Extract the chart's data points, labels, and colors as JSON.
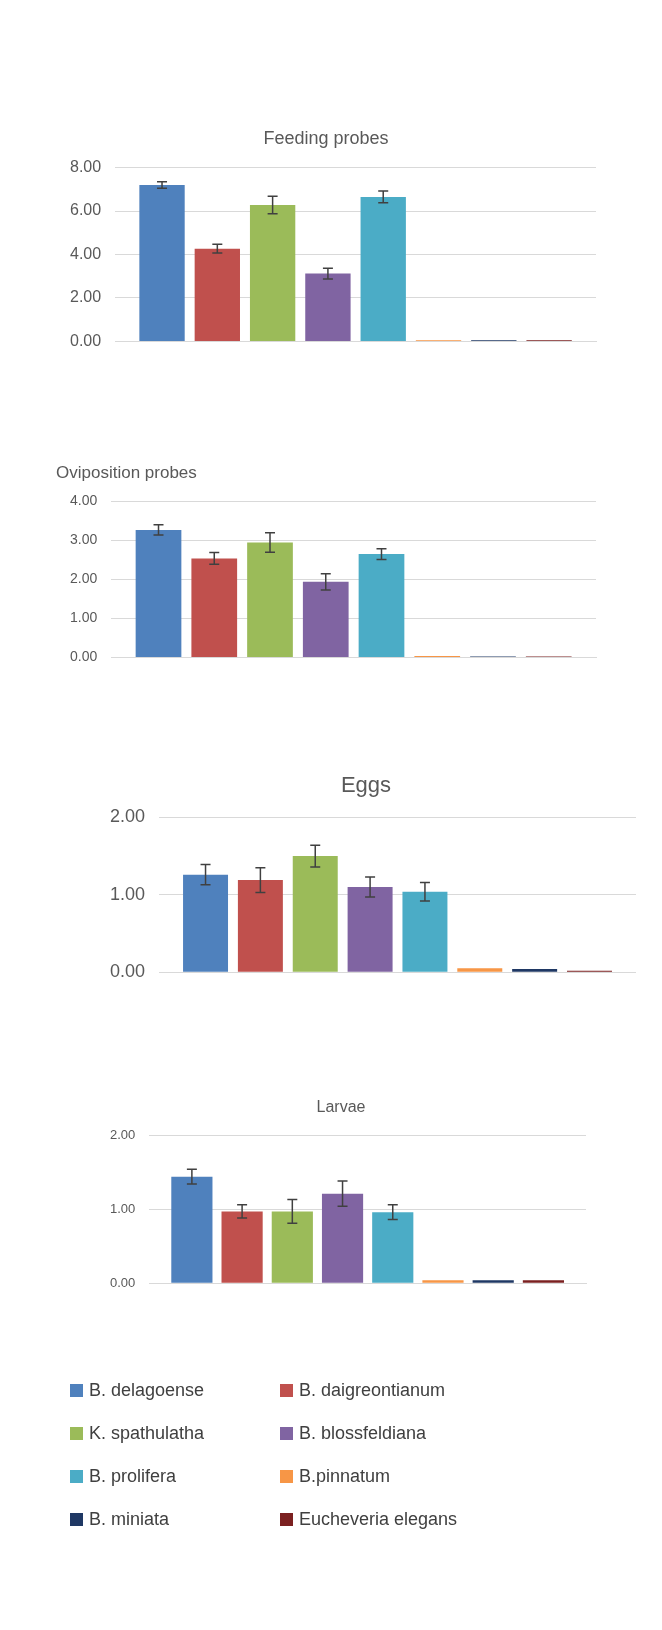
{
  "chart_data": [
    {
      "type": "bar",
      "title": "Feeding probes",
      "categories": [
        null
      ],
      "series": [
        {
          "color": "#4f81bd",
          "values": [
            7.2
          ],
          "errors": [
            0.15
          ]
        },
        {
          "color": "#c0504d",
          "values": [
            4.27
          ],
          "errors": [
            0.2
          ]
        },
        {
          "color": "#9bbb59",
          "values": [
            6.28
          ],
          "errors": [
            0.4
          ]
        },
        {
          "color": "#8064a2",
          "values": [
            3.12
          ],
          "errors": [
            0.25
          ]
        },
        {
          "color": "#4bacc6",
          "values": [
            6.65
          ],
          "errors": [
            0.27
          ]
        },
        {
          "color": "#f79646",
          "values": [
            0.05
          ]
        },
        {
          "color": "#1f3864",
          "values": [
            0.05
          ]
        },
        {
          "color": "#7b2020",
          "values": [
            0.05
          ]
        }
      ],
      "ylim": [
        0,
        8
      ],
      "yticks": [
        {
          "value": 0,
          "label": "0.00"
        },
        {
          "value": 2,
          "label": "2.00"
        },
        {
          "value": 4,
          "label": "4.00"
        },
        {
          "value": 6,
          "label": "6.00"
        },
        {
          "value": 8,
          "label": "8.00"
        }
      ],
      "grid": "y",
      "tick_labels": "y"
    },
    {
      "type": "bar",
      "title": "Oviposition probes",
      "categories": [
        null
      ],
      "series": [
        {
          "color": "#4f81bd",
          "values": [
            3.27
          ],
          "errors": [
            0.13
          ]
        },
        {
          "color": "#c0504d",
          "values": [
            2.54
          ],
          "errors": [
            0.15
          ]
        },
        {
          "color": "#9bbb59",
          "values": [
            2.95
          ],
          "errors": [
            0.25
          ]
        },
        {
          "color": "#8064a2",
          "values": [
            1.94
          ],
          "errors": [
            0.21
          ]
        },
        {
          "color": "#4bacc6",
          "values": [
            2.65
          ],
          "errors": [
            0.14
          ]
        },
        {
          "color": "#f79646",
          "values": [
            0.04
          ]
        },
        {
          "color": "#1f3864",
          "values": [
            0.03
          ]
        },
        {
          "color": "#7b2020",
          "values": [
            0.03
          ]
        }
      ],
      "ylim": [
        0,
        4
      ],
      "yticks": [
        {
          "value": 0,
          "label": "0.00"
        },
        {
          "value": 1,
          "label": "1.00"
        },
        {
          "value": 2,
          "label": "2.00"
        },
        {
          "value": 3,
          "label": "3.00"
        },
        {
          "value": 4,
          "label": "4.00"
        }
      ],
      "grid": "y",
      "tick_labels": "y"
    },
    {
      "type": "bar",
      "title": "Eggs",
      "categories": [
        null
      ],
      "series": [
        {
          "color": "#4f81bd",
          "values": [
            1.26
          ],
          "errors": [
            0.13
          ]
        },
        {
          "color": "#c0504d",
          "values": [
            1.19
          ],
          "errors": [
            0.16
          ]
        },
        {
          "color": "#9bbb59",
          "values": [
            1.5
          ],
          "errors": [
            0.14
          ]
        },
        {
          "color": "#8064a2",
          "values": [
            1.1
          ],
          "errors": [
            0.13
          ]
        },
        {
          "color": "#4bacc6",
          "values": [
            1.04
          ],
          "errors": [
            0.12
          ]
        },
        {
          "color": "#f79646",
          "values": [
            0.05
          ]
        },
        {
          "color": "#1f3864",
          "values": [
            0.04
          ]
        },
        {
          "color": "#7b2020",
          "values": [
            0.02
          ]
        }
      ],
      "ylim": [
        0,
        2
      ],
      "yticks": [
        {
          "value": 0,
          "label": "0.00"
        },
        {
          "value": 1,
          "label": "1.00"
        },
        {
          "value": 2,
          "label": "2.00"
        }
      ],
      "grid": "y",
      "tick_labels": "y"
    },
    {
      "type": "bar",
      "title": "Larvae",
      "categories": [
        null
      ],
      "series": [
        {
          "name": "B. delagoense",
          "color": "#4f81bd",
          "values": [
            1.44
          ],
          "errors": [
            0.1
          ]
        },
        {
          "name": "B. daigreontianum",
          "color": "#c0504d",
          "values": [
            0.97
          ],
          "errors": [
            0.09
          ]
        },
        {
          "name": "K. spathulatha",
          "color": "#9bbb59",
          "values": [
            0.97
          ],
          "errors": [
            0.16
          ]
        },
        {
          "name": "B. blossfeldiana",
          "color": "#8064a2",
          "values": [
            1.21
          ],
          "errors": [
            0.17
          ]
        },
        {
          "name": "B. prolifera",
          "color": "#4bacc6",
          "values": [
            0.96
          ],
          "errors": [
            0.1
          ]
        },
        {
          "name": "B.pinnatum",
          "color": "#f79646",
          "values": [
            0.04
          ]
        },
        {
          "name": "B. miniata",
          "color": "#1f3864",
          "values": [
            0.04
          ]
        },
        {
          "name": "Eucheveria elegans",
          "color": "#7b2020",
          "values": [
            0.04
          ]
        }
      ],
      "ylim": [
        0,
        2
      ],
      "yticks": [
        {
          "value": 0,
          "label": "0.00"
        },
        {
          "value": 1,
          "label": "1.00"
        },
        {
          "value": 2,
          "label": "2.00"
        }
      ],
      "grid": "y",
      "tick_labels": "y",
      "legend": "bottom"
    }
  ]
}
